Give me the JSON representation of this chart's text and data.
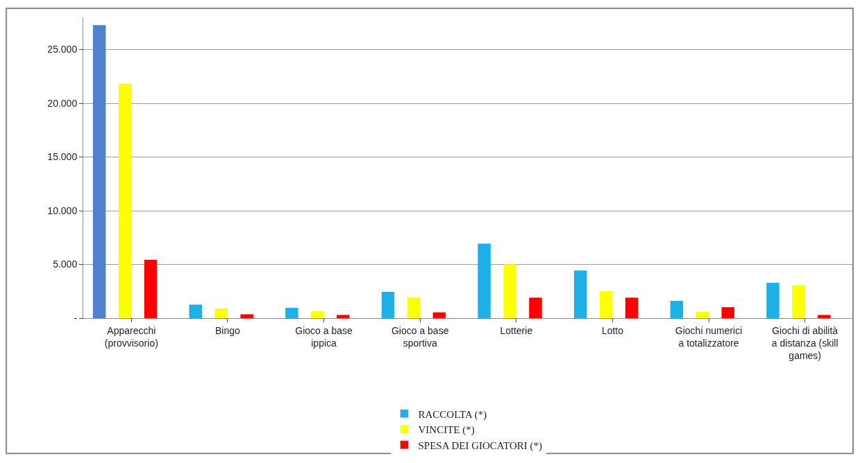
{
  "chart_data": {
    "type": "bar",
    "categories": [
      "Apparecchi\n(provvisorio)",
      "Bingo",
      "Gioco a base\nippica",
      "Gioco a base\nsportiva",
      "Lotterie",
      "Lotto",
      "Giochi numerici\na totalizzatore",
      "Giochi di abilità\na distanza (skill\ngames)"
    ],
    "series": [
      {
        "name": "RACCOLTA (*)",
        "color": "#1fb0e8",
        "colors": [
          "#4f81d0",
          "#1fb0e8",
          "#1fb0e8",
          "#1fb0e8",
          "#1fb0e8",
          "#1fb0e8",
          "#1fb0e8",
          "#1fb0e8"
        ],
        "values": [
          27270,
          1260,
          960,
          2450,
          6940,
          4430,
          1610,
          3290
        ]
      },
      {
        "name": "VINCITE (*)",
        "color": "#ffff00",
        "values": [
          21830,
          900,
          660,
          1910,
          5020,
          2510,
          600,
          3050
        ]
      },
      {
        "name": "SPESA DEI GIOCATORI (*)",
        "color": "#ff0000",
        "values": [
          5440,
          360,
          300,
          540,
          1910,
          1910,
          1020,
          300
        ]
      }
    ],
    "ylim": [
      0,
      28000
    ],
    "yticks": [
      {
        "value": 0,
        "label": "-"
      },
      {
        "value": 5000,
        "label": "5.000"
      },
      {
        "value": 10000,
        "label": "10.000"
      },
      {
        "value": 15000,
        "label": "15.000"
      },
      {
        "value": 20000,
        "label": "20.000"
      },
      {
        "value": 25000,
        "label": "25.000"
      }
    ],
    "grid": "y",
    "legend": "bottom"
  }
}
